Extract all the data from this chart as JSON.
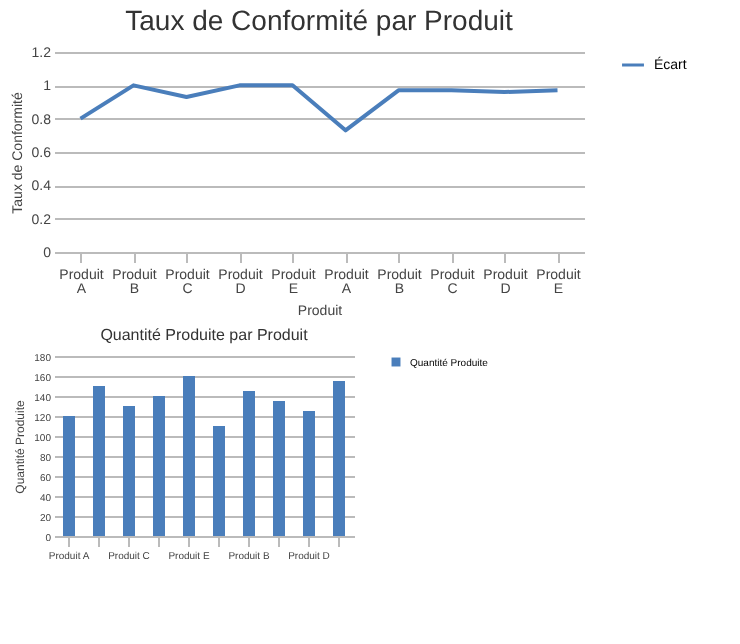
{
  "chart_data": [
    {
      "type": "line",
      "title": "Taux de Conformité par Produit",
      "xlabel": "Produit",
      "ylabel": "Taux de Conformité",
      "categories": [
        "Produit A",
        "Produit B",
        "Produit C",
        "Produit D",
        "Produit E",
        "Produit A",
        "Produit B",
        "Produit C",
        "Produit D",
        "Produit E"
      ],
      "series": [
        {
          "name": "Écart",
          "color": "#4a7ebb",
          "values": [
            0.8,
            1.0,
            0.93,
            1.0,
            1.0,
            0.73,
            0.97,
            0.97,
            0.96,
            0.97
          ]
        }
      ],
      "ylim": [
        0,
        1.2
      ],
      "yticks": [
        0,
        0.2,
        0.4,
        0.6,
        0.8,
        1,
        1.2
      ],
      "grid": "y",
      "legend": "right",
      "marker": "none",
      "line_style": "solid"
    },
    {
      "type": "bar",
      "title": "Quantité Produite par Produit",
      "ylabel": "Quantité Produite",
      "categories": [
        "Produit A",
        null,
        "Produit C",
        null,
        "Produit E",
        null,
        "Produit B",
        null,
        "Produit D",
        null
      ],
      "series": [
        {
          "name": "Quantité Produite",
          "color": "#4a7ebb",
          "values": [
            120,
            150,
            130,
            140,
            160,
            110,
            145,
            135,
            125,
            155
          ]
        }
      ],
      "ylim": [
        0,
        180
      ],
      "yticks": [
        0,
        20,
        40,
        60,
        80,
        100,
        120,
        140,
        160,
        180
      ],
      "grid": "y",
      "legend": "right"
    }
  ]
}
